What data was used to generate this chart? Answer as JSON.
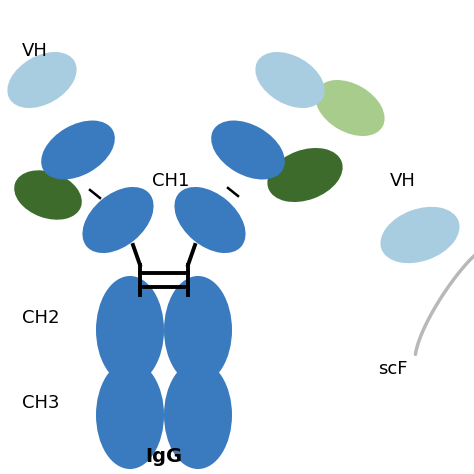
{
  "background_color": "#ffffff",
  "igg_label": "IgG",
  "igg_label_fontsize": 14,
  "igg_label_fontweight": "bold",
  "label_fontsize": 13,
  "blue_dark": "#3a7abf",
  "blue_light": "#a8cce0",
  "green_dark": "#3d6b2c",
  "green_light": "#a8cc8c",
  "scfv_VH_label": "VH",
  "scfv_label": "scF"
}
